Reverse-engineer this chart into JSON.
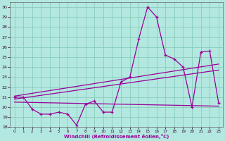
{
  "xlabel": "Windchill (Refroidissement éolien,°C)",
  "bg_color": "#b3e8e0",
  "grid_color": "#88ccbb",
  "line_color": "#990099",
  "xlim": [
    -0.5,
    23.5
  ],
  "ylim": [
    18,
    30.5
  ],
  "xticks": [
    0,
    1,
    2,
    3,
    4,
    5,
    6,
    7,
    8,
    9,
    10,
    11,
    12,
    13,
    14,
    15,
    16,
    17,
    18,
    19,
    20,
    21,
    22,
    23
  ],
  "yticks": [
    18,
    19,
    20,
    21,
    22,
    23,
    24,
    25,
    26,
    27,
    28,
    29,
    30
  ],
  "series": {
    "line1_x": [
      0,
      1,
      2,
      3,
      4,
      5,
      6,
      7,
      8,
      9,
      10,
      11,
      12,
      13,
      14,
      15,
      16,
      17,
      18,
      19,
      20,
      21,
      22,
      23
    ],
    "line1_y": [
      21.0,
      21.0,
      19.8,
      19.3,
      19.3,
      19.5,
      19.3,
      18.2,
      20.3,
      20.6,
      19.5,
      19.5,
      22.5,
      23.0,
      26.8,
      30.0,
      29.0,
      25.2,
      24.8,
      24.0,
      20.0,
      25.5,
      25.6,
      20.4
    ],
    "line2_x": [
      0,
      23
    ],
    "line2_y": [
      21.1,
      24.3
    ],
    "line3_x": [
      0,
      23
    ],
    "line3_y": [
      20.8,
      23.7
    ],
    "line4_x": [
      0,
      23
    ],
    "line4_y": [
      20.5,
      20.1
    ]
  }
}
